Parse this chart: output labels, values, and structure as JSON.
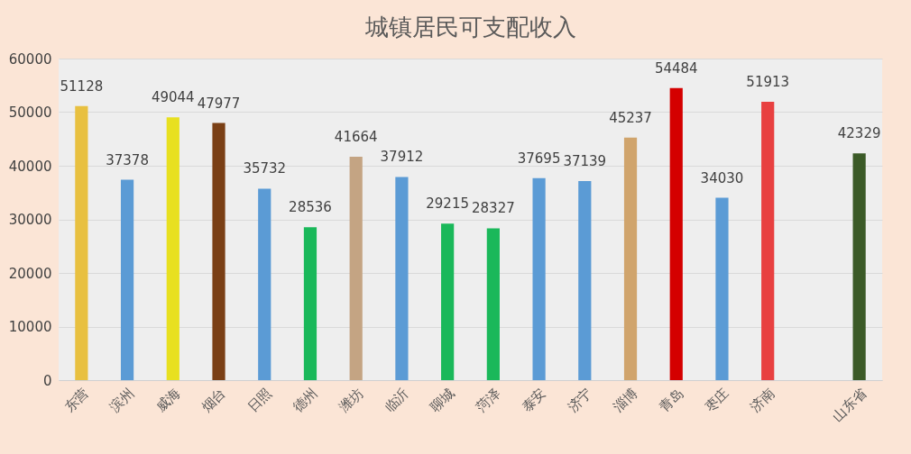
{
  "chart_data": {
    "type": "bar",
    "title": "城镇居民可支配收入",
    "categories": [
      "东营",
      "滨州",
      "威海",
      "烟台",
      "日照",
      "德州",
      "潍坊",
      "临沂",
      "聊城",
      "菏泽",
      "泰安",
      "济宁",
      "淄博",
      "青岛",
      "枣庄",
      "济南",
      null,
      "山东省"
    ],
    "values": [
      51128,
      37378,
      49044,
      47977,
      35732,
      28536,
      41664,
      37912,
      29215,
      28327,
      37695,
      37139,
      45237,
      54484,
      34030,
      51913,
      null,
      42329
    ],
    "colors": [
      "#e8c040",
      "#5b9bd5",
      "#e8e020",
      "#7a3f15",
      "#5b9bd5",
      "#1ab85a",
      "#c4a483",
      "#5b9bd5",
      "#1ab85a",
      "#1ab85a",
      "#5b9bd5",
      "#5b9bd5",
      "#d0a46c",
      "#d40000",
      "#5b9bd5",
      "#e84040",
      "#5b9bd5",
      "#3b5a27"
    ],
    "ylim": [
      0,
      60000
    ],
    "yticks": [
      0,
      10000,
      20000,
      30000,
      40000,
      50000,
      60000
    ],
    "grid": "y",
    "data_labels": true
  }
}
